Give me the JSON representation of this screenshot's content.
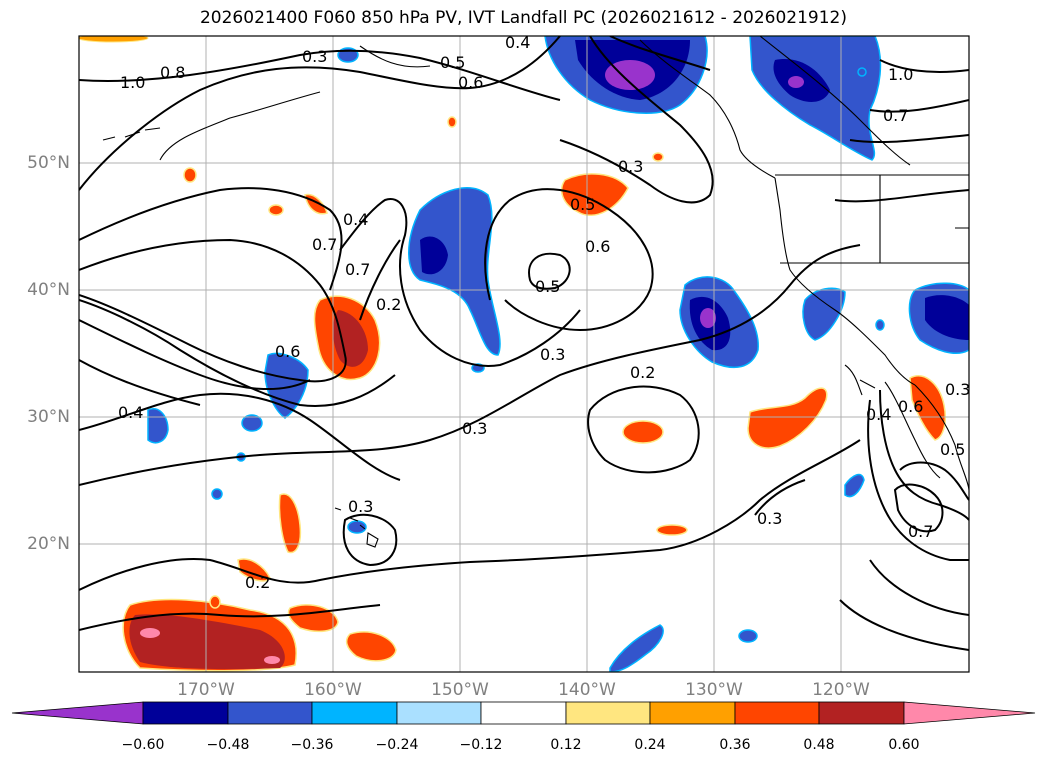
{
  "title": "2026021400 F060 850 hPa PV, IVT Landfall PC (2026021612 - 2026021912)",
  "lat_labels": [
    "50°N",
    "40°N",
    "30°N",
    "20°N"
  ],
  "lon_labels": [
    "170°W",
    "160°W",
    "150°W",
    "140°W",
    "130°W",
    "120°W"
  ],
  "contour_labels": [
    "0.3",
    "0.5",
    "0.6",
    "0.4",
    "1.0",
    "0.8",
    "1.0",
    "0.7",
    "0.3",
    "0.5",
    "0.6",
    "0.7",
    "0.4",
    "0.7",
    "0.5",
    "0.3",
    "0.2",
    "0.6",
    "0.4",
    "0.2",
    "0.3",
    "0.3",
    "0.3",
    "0.2",
    "0.4",
    "0.6",
    "0.5",
    "0.7",
    "0.3"
  ],
  "colorbar": {
    "ticks": [
      "−0.60",
      "−0.48",
      "−0.36",
      "−0.24",
      "−0.12",
      "0.12",
      "0.24",
      "0.36",
      "0.48",
      "0.60"
    ],
    "colors": [
      "#9933cc",
      "#000099",
      "#3355cc",
      "#00b4ff",
      "#aae0ff",
      "#ffffff",
      "#ffe680",
      "#ffa000",
      "#ff4500",
      "#b22222",
      "#ff88aa"
    ]
  },
  "colors": {
    "positive_orange": "#ff4500",
    "positive_red": "#b22222",
    "positive_pink": "#ff88aa",
    "negative_blue": "#3355cc",
    "negative_navy": "#000099",
    "negative_purple": "#9933cc",
    "grid": "#b0b0b0",
    "coast": "#000000",
    "axis_labels": "#808080"
  }
}
